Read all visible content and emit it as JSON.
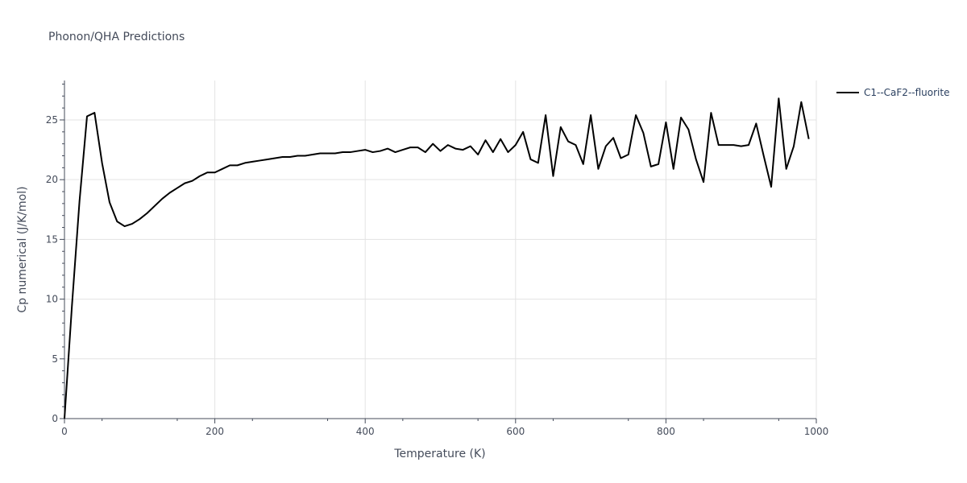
{
  "chart_data": {
    "type": "line",
    "title": "Phonon/QHA Predictions",
    "xlabel": "Temperature (K)",
    "ylabel": "Cp numerical (J/K/mol)",
    "xlim": [
      0,
      1000
    ],
    "ylim": [
      0,
      28.3
    ],
    "xticks": [
      0,
      200,
      400,
      600,
      800,
      1000
    ],
    "yticks": [
      0,
      5,
      10,
      15,
      20,
      25
    ],
    "grid": true,
    "legend_position": "top-right",
    "series": [
      {
        "name": "C1--CaF2--fluorite",
        "color": "#000000",
        "x": [
          0,
          10,
          20,
          30,
          40,
          50,
          60,
          70,
          80,
          90,
          100,
          110,
          120,
          130,
          140,
          150,
          160,
          170,
          180,
          190,
          200,
          210,
          220,
          230,
          240,
          250,
          260,
          270,
          280,
          290,
          300,
          310,
          320,
          330,
          340,
          350,
          360,
          370,
          380,
          390,
          400,
          410,
          420,
          430,
          440,
          450,
          460,
          470,
          480,
          490,
          500,
          510,
          520,
          530,
          540,
          550,
          560,
          570,
          580,
          590,
          600,
          610,
          620,
          630,
          640,
          650,
          660,
          670,
          680,
          690,
          700,
          710,
          720,
          730,
          740,
          750,
          760,
          770,
          780,
          790,
          800,
          810,
          820,
          830,
          840,
          850,
          860,
          870,
          880,
          890,
          900,
          910,
          920,
          930,
          940,
          950,
          960,
          970,
          980,
          990
        ],
        "y": [
          0,
          9.5,
          18.2,
          25.3,
          25.6,
          21.4,
          18.1,
          16.5,
          16.1,
          16.3,
          16.7,
          17.2,
          17.8,
          18.4,
          18.9,
          19.3,
          19.7,
          19.9,
          20.3,
          20.6,
          20.6,
          20.9,
          21.2,
          21.2,
          21.4,
          21.5,
          21.6,
          21.7,
          21.8,
          21.9,
          21.9,
          22.0,
          22.0,
          22.1,
          22.2,
          22.2,
          22.2,
          22.3,
          22.3,
          22.4,
          22.5,
          22.3,
          22.4,
          22.6,
          22.3,
          22.5,
          22.7,
          22.7,
          22.3,
          23.0,
          22.4,
          22.9,
          22.6,
          22.5,
          22.8,
          22.1,
          23.3,
          22.3,
          23.4,
          22.3,
          22.9,
          24.0,
          21.7,
          21.4,
          25.4,
          20.3,
          24.4,
          23.2,
          22.9,
          21.3,
          25.4,
          20.9,
          22.8,
          23.5,
          21.8,
          22.1,
          25.4,
          23.9,
          21.1,
          21.3,
          24.8,
          20.9,
          25.2,
          24.2,
          21.7,
          19.8,
          25.6,
          22.9,
          22.9,
          22.9,
          22.8,
          22.9,
          24.7,
          22.0,
          19.4,
          26.8,
          20.9,
          22.8,
          26.5,
          23.4
        ]
      }
    ]
  }
}
